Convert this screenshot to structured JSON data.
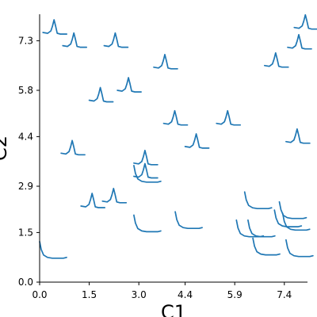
{
  "chart_data": {
    "type": "glyph-scatter",
    "xlabel": "C1",
    "ylabel": "C2",
    "xlim": [
      0.0,
      8.1
    ],
    "ylim": [
      0.0,
      8.1
    ],
    "xticks": [
      "0.0",
      "1.5",
      "3.0",
      "4.4",
      "5.9",
      "7.4"
    ],
    "yticks": [
      "0.0",
      "1.5",
      "2.9",
      "4.4",
      "5.8",
      "7.3"
    ],
    "xtick_values": [
      0.0,
      1.5,
      3.0,
      4.4,
      5.9,
      7.4
    ],
    "ytick_values": [
      0.0,
      1.5,
      2.9,
      4.4,
      5.8,
      7.3
    ],
    "series_color": "#1f77b4",
    "glyphs": [
      {
        "kind": "decay",
        "x": 0.0,
        "y": 0.7
      },
      {
        "kind": "peak",
        "x": 0.1,
        "y": 7.55
      },
      {
        "kind": "peak",
        "x": 0.7,
        "y": 7.15
      },
      {
        "kind": "peak",
        "x": 1.95,
        "y": 7.15
      },
      {
        "kind": "peak",
        "x": 7.7,
        "y": 7.7
      },
      {
        "kind": "peak",
        "x": 7.5,
        "y": 7.1
      },
      {
        "kind": "peak",
        "x": 3.45,
        "y": 6.5
      },
      {
        "kind": "peak",
        "x": 6.8,
        "y": 6.55
      },
      {
        "kind": "peak",
        "x": 1.5,
        "y": 5.5
      },
      {
        "kind": "peak",
        "x": 2.35,
        "y": 5.8
      },
      {
        "kind": "peak",
        "x": 3.75,
        "y": 4.8
      },
      {
        "kind": "peak",
        "x": 5.35,
        "y": 4.8
      },
      {
        "kind": "peak",
        "x": 4.4,
        "y": 4.1
      },
      {
        "kind": "peak",
        "x": 7.45,
        "y": 4.25
      },
      {
        "kind": "peak",
        "x": 0.65,
        "y": 3.9
      },
      {
        "kind": "peak",
        "x": 2.85,
        "y": 3.6
      },
      {
        "kind": "peak",
        "x": 2.85,
        "y": 3.2
      },
      {
        "kind": "peak",
        "x": 1.25,
        "y": 2.3
      },
      {
        "kind": "peak",
        "x": 1.9,
        "y": 2.45
      },
      {
        "kind": "decay",
        "x": 2.85,
        "y": 3.0
      },
      {
        "kind": "decay",
        "x": 2.85,
        "y": 1.5
      },
      {
        "kind": "decay",
        "x": 4.1,
        "y": 1.6
      },
      {
        "kind": "decay",
        "x": 6.2,
        "y": 2.2
      },
      {
        "kind": "decay",
        "x": 7.25,
        "y": 1.9
      },
      {
        "kind": "decay",
        "x": 5.95,
        "y": 1.35
      },
      {
        "kind": "decay",
        "x": 6.3,
        "y": 1.35
      },
      {
        "kind": "decay",
        "x": 7.1,
        "y": 1.65
      },
      {
        "kind": "decay",
        "x": 7.35,
        "y": 1.55
      },
      {
        "kind": "decay",
        "x": 6.45,
        "y": 0.8
      },
      {
        "kind": "decay",
        "x": 7.45,
        "y": 0.75
      }
    ]
  }
}
